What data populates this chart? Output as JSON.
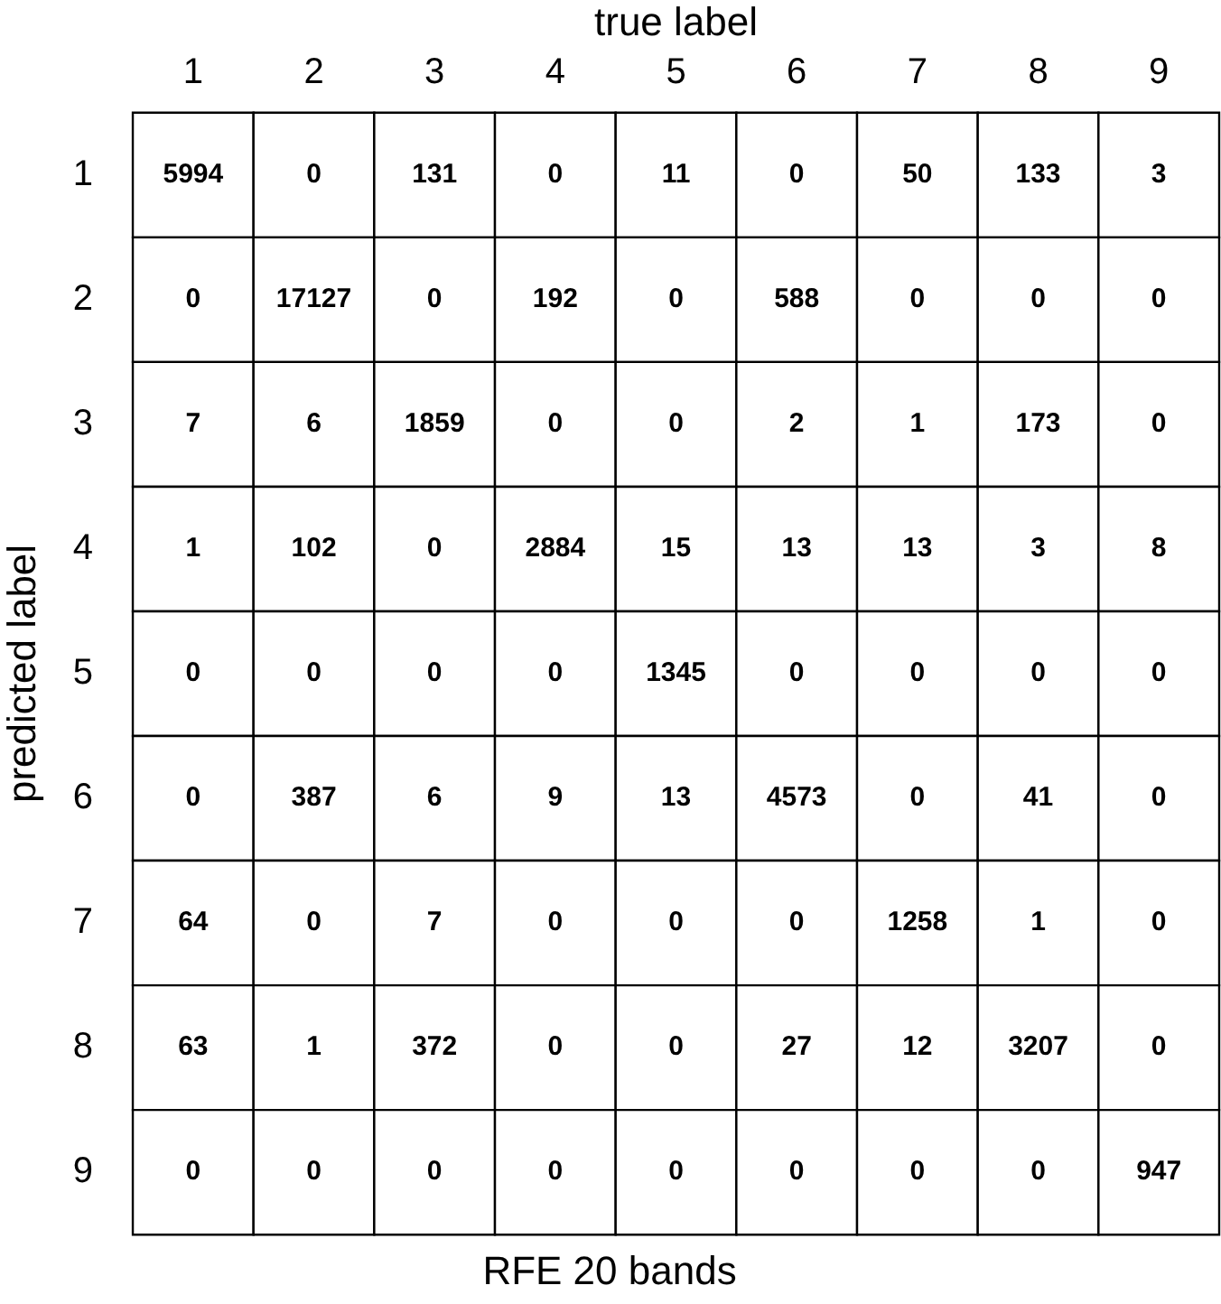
{
  "chart_data": {
    "type": "heatmap",
    "title": "RFE 20 bands",
    "xlabel": "true label",
    "ylabel": "predicted label",
    "categories": [
      "1",
      "2",
      "3",
      "4",
      "5",
      "6",
      "7",
      "8",
      "9"
    ],
    "y_categories": [
      "1",
      "2",
      "3",
      "4",
      "5",
      "6",
      "7",
      "8",
      "9"
    ],
    "cells": [
      [
        5994,
        0,
        131,
        0,
        11,
        0,
        50,
        133,
        3
      ],
      [
        0,
        17127,
        0,
        192,
        0,
        588,
        0,
        0,
        0
      ],
      [
        7,
        6,
        1859,
        0,
        0,
        2,
        1,
        173,
        0
      ],
      [
        1,
        102,
        0,
        2884,
        15,
        13,
        13,
        3,
        8
      ],
      [
        0,
        0,
        0,
        0,
        1345,
        0,
        0,
        0,
        0
      ],
      [
        0,
        387,
        6,
        9,
        13,
        4573,
        0,
        41,
        0
      ],
      [
        64,
        0,
        7,
        0,
        0,
        0,
        1258,
        1,
        0
      ],
      [
        63,
        1,
        372,
        0,
        0,
        27,
        12,
        3207,
        0
      ],
      [
        0,
        0,
        0,
        0,
        0,
        0,
        0,
        0,
        947
      ]
    ],
    "data_labels": true
  }
}
